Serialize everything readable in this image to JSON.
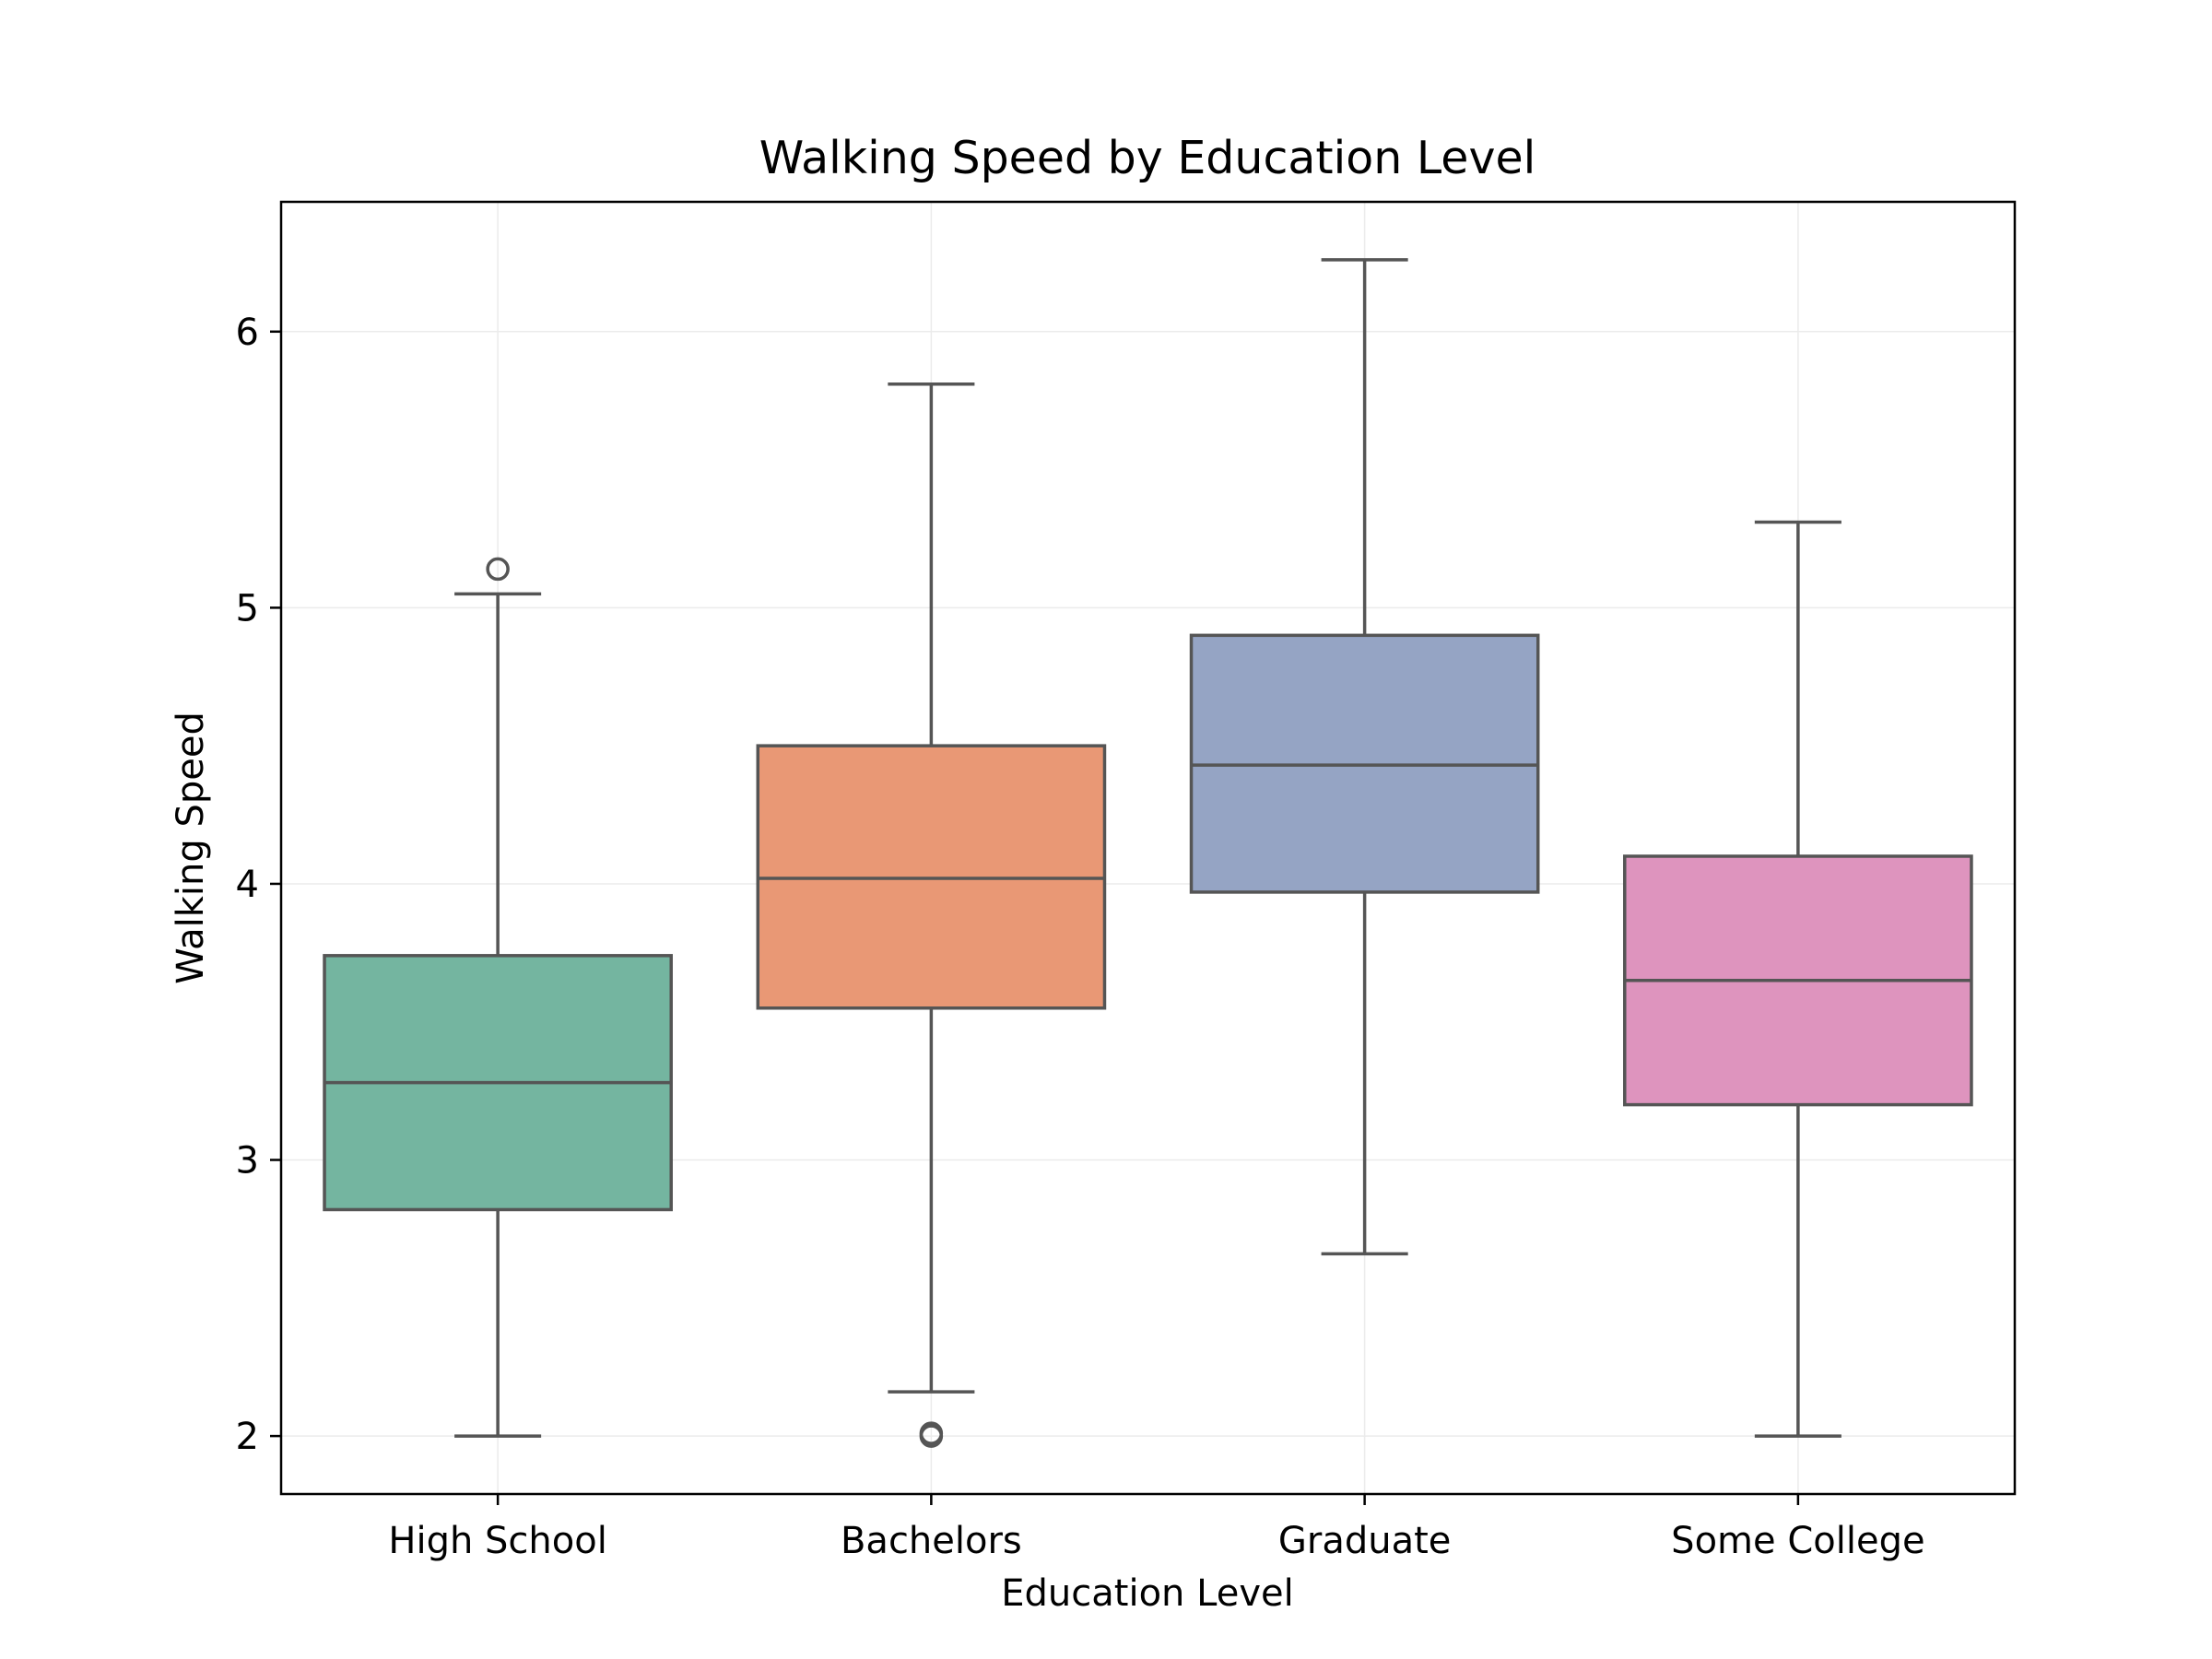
{
  "chart_data": {
    "type": "box",
    "title": "Walking Speed by Education Level",
    "xlabel": "Education Level",
    "ylabel": "Walking Speed",
    "ylim": [
      1.79,
      6.47
    ],
    "yticks": [
      2,
      3,
      4,
      5,
      6
    ],
    "grid": true,
    "categories": [
      "High School",
      "Bachelors",
      "Graduate",
      "Some College"
    ],
    "colors": [
      "#74b5a0",
      "#e99875",
      "#95a4c4",
      "#de94be"
    ],
    "boxes": [
      {
        "name": "High School",
        "whisker_low": 2.0,
        "q1": 2.82,
        "median": 3.28,
        "q3": 3.74,
        "whisker_high": 5.05,
        "outliers": [
          5.14
        ]
      },
      {
        "name": "Bachelors",
        "whisker_low": 2.16,
        "q1": 3.55,
        "median": 4.02,
        "q3": 4.5,
        "whisker_high": 5.81,
        "outliers": [
          2.0,
          2.01
        ]
      },
      {
        "name": "Graduate",
        "whisker_low": 2.66,
        "q1": 3.97,
        "median": 4.43,
        "q3": 4.9,
        "whisker_high": 6.26,
        "outliers": []
      },
      {
        "name": "Some College",
        "whisker_low": 2.0,
        "q1": 3.2,
        "median": 3.65,
        "q3": 4.1,
        "whisker_high": 5.31,
        "outliers": []
      }
    ]
  }
}
